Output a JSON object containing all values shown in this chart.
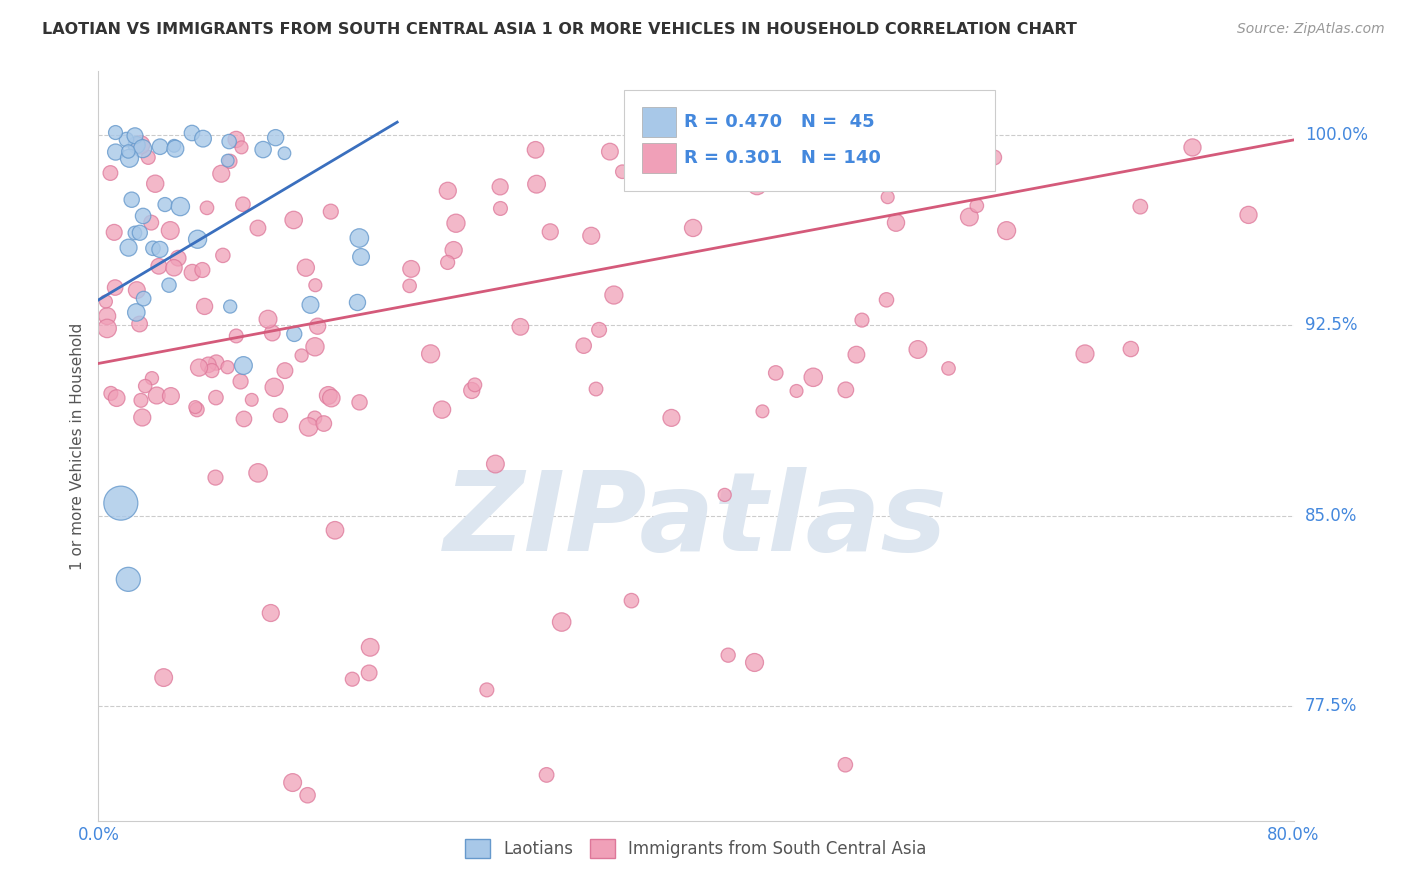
{
  "title": "LAOTIAN VS IMMIGRANTS FROM SOUTH CENTRAL ASIA 1 OR MORE VEHICLES IN HOUSEHOLD CORRELATION CHART",
  "source": "Source: ZipAtlas.com",
  "ylabel": "1 or more Vehicles in Household",
  "xlim": [
    0.0,
    80.0
  ],
  "ylim": [
    73.0,
    102.5
  ],
  "y_ticks": [
    77.5,
    85.0,
    92.5,
    100.0
  ],
  "y_tick_labels": [
    "77.5%",
    "85.0%",
    "92.5%",
    "100.0%"
  ],
  "x_tick_labels": [
    "0.0%",
    "80.0%"
  ],
  "blue_line_color": "#3a6fbe",
  "pink_line_color": "#d45a7a",
  "blue_dot_color": "#a8c8e8",
  "pink_dot_color": "#f0a0b8",
  "dot_edge_color_blue": "#6699cc",
  "dot_edge_color_pink": "#dd7799",
  "background_color": "#ffffff",
  "grid_color": "#cccccc",
  "title_color": "#333333",
  "axis_label_color": "#555555",
  "tick_label_color": "#4488dd",
  "watermark_color": "#dde6f0",
  "watermark_text": "ZIPatlas",
  "blue_line_x0": 0.0,
  "blue_line_y0": 93.5,
  "blue_line_x1": 20.0,
  "blue_line_y1": 100.5,
  "pink_line_x0": 0.0,
  "pink_line_y0": 91.0,
  "pink_line_x1": 80.0,
  "pink_line_y1": 99.8
}
